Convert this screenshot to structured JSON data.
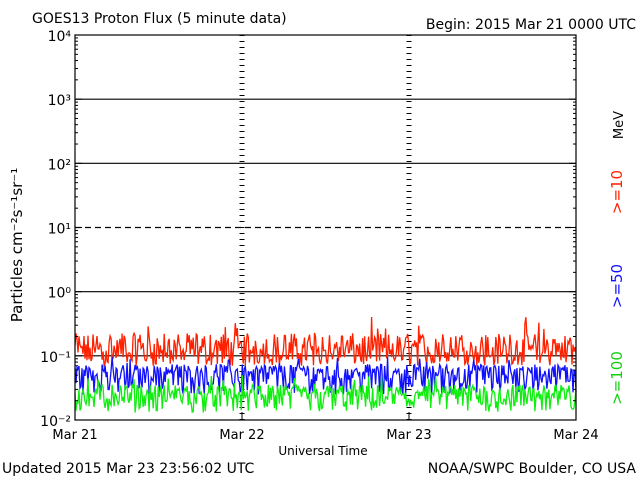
{
  "header": {
    "title": "GOES13 Proton Flux (5 minute data)",
    "begin": "Begin: 2015 Mar 21 0000 UTC"
  },
  "footer": {
    "updated": "Updated 2015 Mar 23 23:56:02 UTC",
    "source": "NOAA/SWPC Boulder, CO USA"
  },
  "chart_data": {
    "type": "line",
    "title": "GOES13 Proton Flux (5 minute data)",
    "xlabel": "Universal Time",
    "ylabel": "Particles cm⁻²s⁻¹sr⁻¹",
    "y_scale": "log",
    "ylim": [
      0.01,
      10000
    ],
    "xlim_days": [
      0,
      3
    ],
    "x_ticks": [
      "Mar 21",
      "Mar 22",
      "Mar 23",
      "Mar 24"
    ],
    "y_ticks": [
      {
        "value": 0.01,
        "label": "10⁻²"
      },
      {
        "value": 0.1,
        "label": "10⁻¹"
      },
      {
        "value": 1,
        "label": "10⁰"
      },
      {
        "value": 10,
        "label": "10¹"
      },
      {
        "value": 100,
        "label": "10²"
      },
      {
        "value": 1000,
        "label": "10³"
      },
      {
        "value": 10000,
        "label": "10⁴"
      }
    ],
    "threshold_lines": [
      {
        "value": 10,
        "style": "dashed"
      },
      {
        "value": 1,
        "style": "solid"
      },
      {
        "value": 0.1,
        "style": "solid"
      }
    ],
    "energy_unit": "MeV",
    "legend_placement": "right",
    "series": [
      {
        "name": ">=10",
        "color": "#ff2000",
        "typical": 0.12,
        "range": [
          0.07,
          0.42
        ]
      },
      {
        "name": ">=50",
        "color": "#1010ff",
        "typical": 0.055,
        "range": [
          0.025,
          0.1
        ]
      },
      {
        "name": ">=100",
        "color": "#10ee10",
        "typical": 0.025,
        "range": [
          0.013,
          0.05
        ]
      }
    ]
  }
}
